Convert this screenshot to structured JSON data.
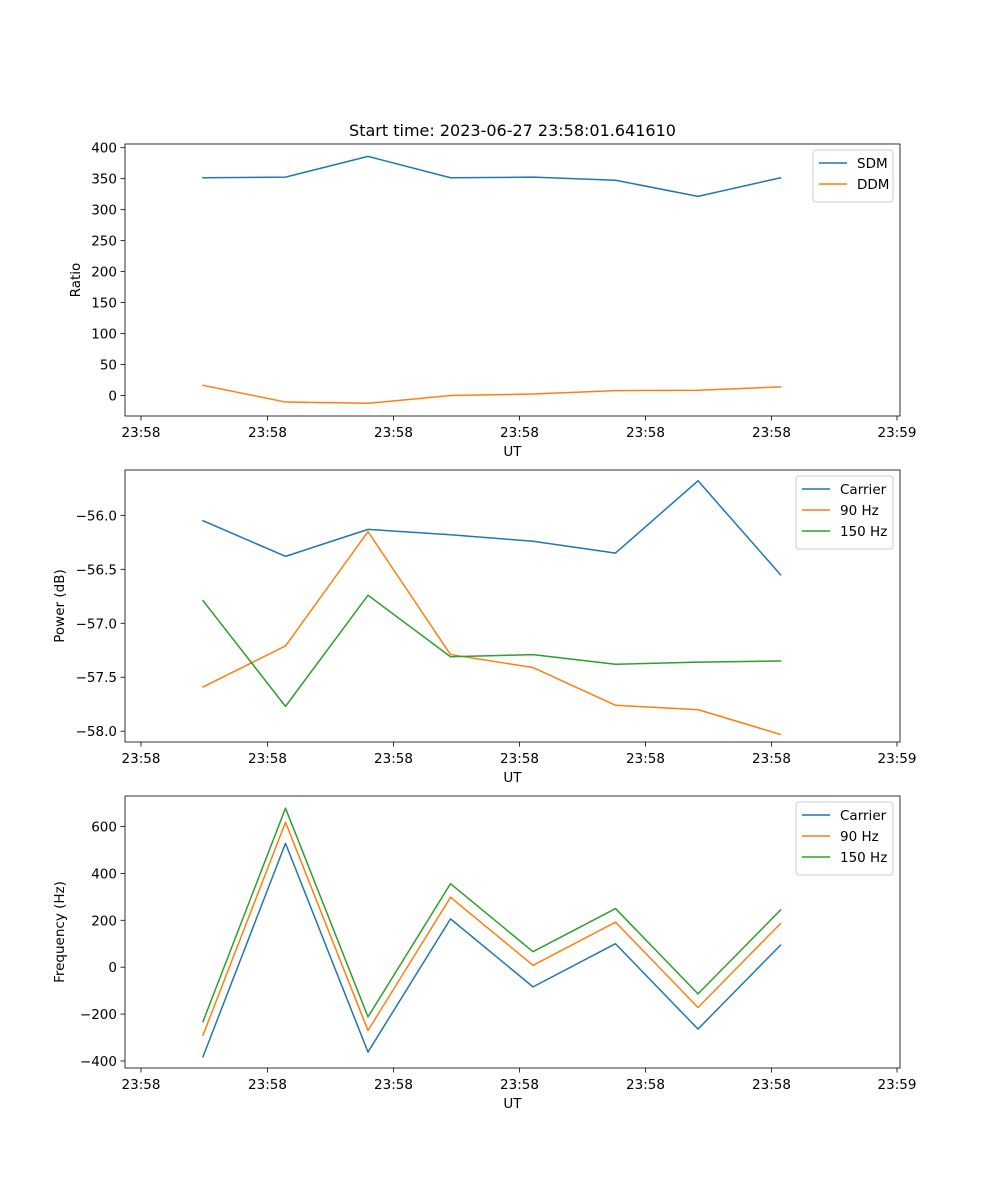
{
  "colors": {
    "blue": "#1f77b4",
    "orange": "#ff7f0e",
    "green": "#2ca02c",
    "axis": "#000000",
    "legend_border": "#cccccc"
  },
  "chart_data": [
    {
      "type": "line",
      "title": "Start time: 2023-06-27 23:58:01.641610",
      "xlabel": "UT",
      "ylabel": "Ratio",
      "x_ticks": [
        "23:58",
        "23:58",
        "23:58",
        "23:58",
        "23:58",
        "23:58",
        "23:59"
      ],
      "y_ticks": [
        "0",
        "50",
        "100",
        "150",
        "200",
        "250",
        "300",
        "350",
        "400"
      ],
      "ylim": [
        -33,
        406
      ],
      "grid": false,
      "legend_position": "top-right",
      "series": [
        {
          "name": "SDM",
          "color": "blue",
          "values": [
            351.5,
            352.5,
            386,
            351.5,
            352.5,
            347.5,
            321.5,
            351.5
          ]
        },
        {
          "name": "DDM",
          "color": "orange",
          "values": [
            16.5,
            -10.5,
            -12.5,
            0,
            2.5,
            8,
            8.5,
            14
          ]
        }
      ]
    },
    {
      "type": "line",
      "title": "",
      "xlabel": "UT",
      "ylabel": "Power (dB)",
      "x_ticks": [
        "23:58",
        "23:58",
        "23:58",
        "23:58",
        "23:58",
        "23:58",
        "23:59"
      ],
      "y_ticks": [
        "−58.0",
        "−57.5",
        "−57.0",
        "−56.5",
        "−56.0"
      ],
      "ylim": [
        -58.1,
        -55.58
      ],
      "grid": false,
      "legend_position": "top-right",
      "series": [
        {
          "name": "Carrier",
          "color": "blue",
          "values": [
            -56.05,
            -56.38,
            -56.13,
            -56.18,
            -56.24,
            -56.35,
            -55.68,
            -56.55
          ]
        },
        {
          "name": "90 Hz",
          "color": "orange",
          "values": [
            -57.59,
            -57.21,
            -56.15,
            -57.29,
            -57.41,
            -57.76,
            -57.8,
            -58.03
          ]
        },
        {
          "name": "150 Hz",
          "color": "green",
          "values": [
            -56.79,
            -57.77,
            -56.74,
            -57.31,
            -57.29,
            -57.38,
            -57.36,
            -57.35
          ]
        }
      ]
    },
    {
      "type": "line",
      "title": "",
      "xlabel": "UT",
      "ylabel": "Frequency (Hz)",
      "x_ticks": [
        "23:58",
        "23:58",
        "23:58",
        "23:58",
        "23:58",
        "23:58",
        "23:59"
      ],
      "y_ticks": [
        "−400",
        "−200",
        "0",
        "200",
        "400",
        "600"
      ],
      "ylim": [
        -430,
        730
      ],
      "grid": false,
      "legend_position": "top-right",
      "series": [
        {
          "name": "Carrier",
          "color": "blue",
          "values": [
            -382,
            528,
            -362,
            206,
            -84,
            100,
            -264,
            94
          ]
        },
        {
          "name": "90 Hz",
          "color": "orange",
          "values": [
            -290,
            618,
            -270,
            298,
            8,
            192,
            -172,
            186
          ]
        },
        {
          "name": "150 Hz",
          "color": "green",
          "values": [
            -232,
            678,
            -212,
            356,
            66,
            250,
            -114,
            244
          ]
        }
      ]
    }
  ]
}
